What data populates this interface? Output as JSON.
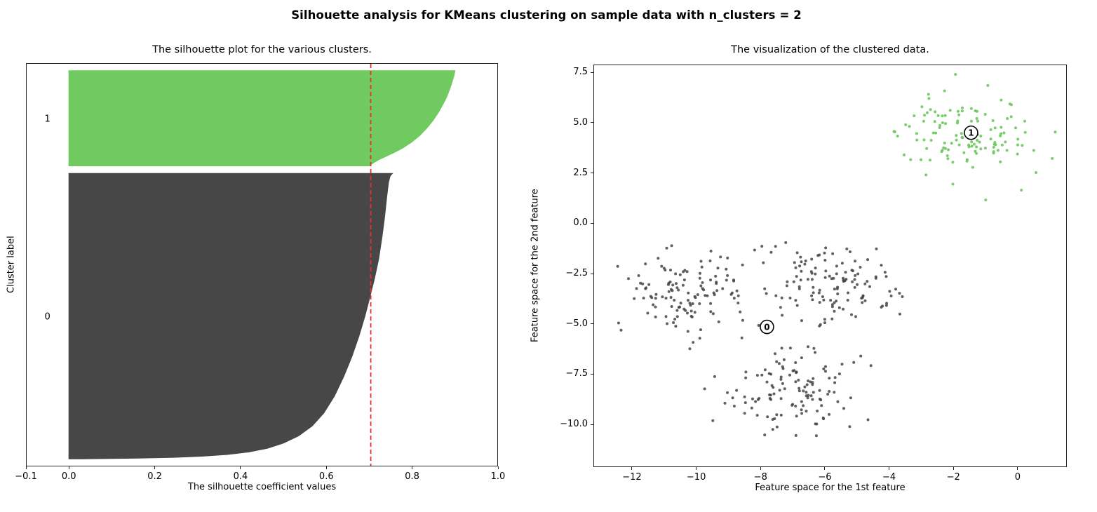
{
  "figure": {
    "title": "Silhouette analysis for KMeans clustering on sample data with n_clusters = 2",
    "background": "#ffffff",
    "frame_color": "#262626"
  },
  "chart_data": [
    {
      "id": "silhouette_plot",
      "type": "area",
      "title": "The silhouette plot for the various clusters.",
      "xlabel": "The silhouette coefficient values",
      "ylabel": "Cluster label",
      "xlim": [
        -0.1,
        1.0
      ],
      "ylim": [
        0,
        530
      ],
      "grid": false,
      "xticks": {
        "values": [
          -0.1,
          0.0,
          0.2,
          0.4,
          0.6,
          0.8,
          1.0
        ],
        "labels": [
          "−0.1",
          "0.0",
          "0.2",
          "0.4",
          "0.6",
          "0.8",
          "1.0"
        ]
      },
      "yticks": {
        "values": [],
        "labels": []
      },
      "average_silhouette_line": {
        "value": 0.7035,
        "color": "#e83030",
        "style": "dashed"
      },
      "cluster_label_x": -0.05,
      "clusters": [
        {
          "label": "0",
          "n_samples": 375,
          "y_lower": 10,
          "fill_color": "#474747",
          "sil_max": 0.754,
          "sil_min": 0.03,
          "profile": [
            [
              0,
              0.754
            ],
            [
              0.008,
              0.749
            ],
            [
              0.03,
              0.745
            ],
            [
              0.08,
              0.741
            ],
            [
              0.15,
              0.736
            ],
            [
              0.22,
              0.73
            ],
            [
              0.3,
              0.722
            ],
            [
              0.37,
              0.712
            ],
            [
              0.43,
              0.702
            ],
            [
              0.5,
              0.69
            ],
            [
              0.57,
              0.676
            ],
            [
              0.64,
              0.66
            ],
            [
              0.71,
              0.641
            ],
            [
              0.78,
              0.619
            ],
            [
              0.84,
              0.594
            ],
            [
              0.885,
              0.567
            ],
            [
              0.92,
              0.535
            ],
            [
              0.945,
              0.5
            ],
            [
              0.963,
              0.463
            ],
            [
              0.976,
              0.42
            ],
            [
              0.985,
              0.37
            ],
            [
              0.991,
              0.31
            ],
            [
              0.995,
              0.245
            ],
            [
              0.998,
              0.16
            ],
            [
              1,
              0.03
            ]
          ]
        },
        {
          "label": "1",
          "n_samples": 125,
          "y_lower": 395,
          "fill_color": "#70ca5f",
          "sil_max": 0.9,
          "sil_min": 0.702,
          "profile": [
            [
              0,
              0.9
            ],
            [
              0.06,
              0.897
            ],
            [
              0.12,
              0.893
            ],
            [
              0.2,
              0.887
            ],
            [
              0.28,
              0.88
            ],
            [
              0.36,
              0.871
            ],
            [
              0.44,
              0.861
            ],
            [
              0.52,
              0.849
            ],
            [
              0.6,
              0.835
            ],
            [
              0.68,
              0.818
            ],
            [
              0.75,
              0.799
            ],
            [
              0.81,
              0.779
            ],
            [
              0.86,
              0.758
            ],
            [
              0.9,
              0.739
            ],
            [
              0.935,
              0.723
            ],
            [
              0.965,
              0.711
            ],
            [
              0.985,
              0.705
            ],
            [
              1,
              0.702
            ]
          ]
        }
      ]
    },
    {
      "id": "cluster_scatter",
      "type": "scatter",
      "title": "The visualization of the clustered data.",
      "xlabel": "Feature space for the 1st feature",
      "ylabel": "Feature space for the 2nd feature",
      "xlim": [
        -13.2,
        1.53
      ],
      "ylim": [
        -12.12,
        7.89
      ],
      "grid": false,
      "xticks": {
        "values": [
          -12,
          -10,
          -8,
          -6,
          -4,
          -2,
          0
        ],
        "labels": [
          "−12",
          "−10",
          "−8",
          "−6",
          "−4",
          "−2",
          "0"
        ]
      },
      "yticks": {
        "values": [
          7.5,
          5.0,
          2.5,
          0.0,
          -2.5,
          -5.0,
          -7.5,
          -10.0
        ],
        "labels": [
          "7.5",
          "5.0",
          "2.5",
          "0.0",
          "−2.5",
          "−5.0",
          "−7.5",
          "−10.0"
        ]
      },
      "n_samples_total": 500,
      "point_radius": 2,
      "seed": 20,
      "clusters": [
        {
          "label": "0",
          "color": "#3d3d3d",
          "opacity": 0.82,
          "blobs": [
            {
              "n": 125,
              "cx": -10.25,
              "cy": -3.45,
              "sx": 0.95,
              "sy": 1.0
            },
            {
              "n": 125,
              "cx": -5.85,
              "cy": -2.95,
              "sx": 1.0,
              "sy": 0.95
            },
            {
              "n": 125,
              "cx": -6.9,
              "cy": -8.4,
              "sx": 1.05,
              "sy": 1.05
            }
          ]
        },
        {
          "label": "1",
          "color": "#6cc65c",
          "opacity": 0.9,
          "blobs": [
            {
              "n": 125,
              "cx": -1.5,
              "cy": 4.4,
              "sx": 1.05,
              "sy": 0.95
            }
          ]
        }
      ],
      "centers": {
        "marker_fill": "#ffffff",
        "marker_stroke": "#000000",
        "items": [
          {
            "label": "0",
            "x": -7.8,
            "y": -5.15
          },
          {
            "label": "1",
            "x": -1.45,
            "y": 4.5
          }
        ]
      }
    }
  ]
}
